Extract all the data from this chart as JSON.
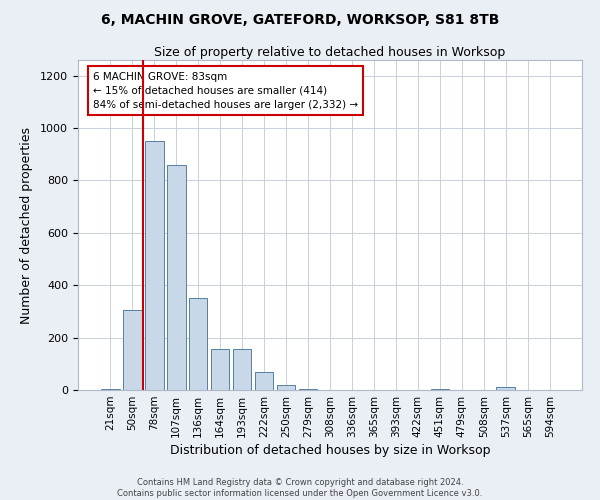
{
  "title_line1": "6, MACHIN GROVE, GATEFORD, WORKSOP, S81 8TB",
  "title_line2": "Size of property relative to detached houses in Worksop",
  "xlabel": "Distribution of detached houses by size in Worksop",
  "ylabel": "Number of detached properties",
  "footer_line1": "Contains HM Land Registry data © Crown copyright and database right 2024.",
  "footer_line2": "Contains public sector information licensed under the Open Government Licence v3.0.",
  "bar_labels": [
    "21sqm",
    "50sqm",
    "78sqm",
    "107sqm",
    "136sqm",
    "164sqm",
    "193sqm",
    "222sqm",
    "250sqm",
    "279sqm",
    "308sqm",
    "336sqm",
    "365sqm",
    "393sqm",
    "422sqm",
    "451sqm",
    "479sqm",
    "508sqm",
    "537sqm",
    "565sqm",
    "594sqm"
  ],
  "bar_values": [
    5,
    305,
    950,
    860,
    350,
    155,
    155,
    70,
    20,
    2,
    0,
    0,
    0,
    0,
    0,
    5,
    0,
    0,
    10,
    0,
    0
  ],
  "bar_color": "#c8d8e8",
  "bar_edge_color": "#5580a0",
  "highlight_index": 2,
  "annotation_text": "6 MACHIN GROVE: 83sqm\n← 15% of detached houses are smaller (414)\n84% of semi-detached houses are larger (2,332) →",
  "annotation_box_color": "#ffffff",
  "annotation_box_edge_color": "#cc0000",
  "red_line_color": "#cc0000",
  "ylim": [
    0,
    1260
  ],
  "yticks": [
    0,
    200,
    400,
    600,
    800,
    1000,
    1200
  ],
  "bg_color": "#eaeff6",
  "plot_bg_color": "#ffffff",
  "grid_color": "#c8d0dc"
}
